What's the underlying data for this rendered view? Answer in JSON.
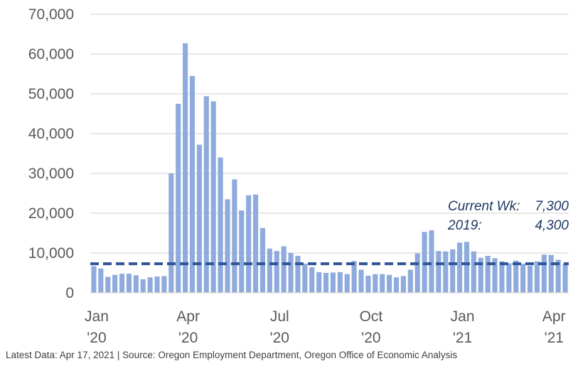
{
  "chart_data": {
    "type": "bar",
    "ylim": [
      0,
      70000
    ],
    "yticks": [
      "0",
      "10,000",
      "20,000",
      "30,000",
      "40,000",
      "50,000",
      "60,000",
      "70,000"
    ],
    "ytick_values": [
      0,
      10000,
      20000,
      30000,
      40000,
      50000,
      60000,
      70000
    ],
    "xtick_labels": [
      {
        "month": "Jan",
        "year": "'20",
        "week_index": 0
      },
      {
        "month": "Apr",
        "year": "'20",
        "week_index": 13
      },
      {
        "month": "Jul",
        "year": "'20",
        "week_index": 26
      },
      {
        "month": "Oct",
        "year": "'20",
        "week_index": 39
      },
      {
        "month": "Jan",
        "year": "'21",
        "week_index": 52
      },
      {
        "month": "Apr",
        "year": "'21",
        "week_index": 65
      }
    ],
    "grid": true,
    "bar_color": "#8faadc",
    "line_color": "#2f5597",
    "values": [
      6700,
      6100,
      4000,
      4500,
      4800,
      4800,
      4400,
      3400,
      3900,
      4100,
      4200,
      30000,
      47500,
      62700,
      54500,
      37200,
      49400,
      48100,
      34000,
      23500,
      28500,
      20700,
      24500,
      24700,
      16300,
      11100,
      10500,
      11700,
      10000,
      9300,
      7300,
      6400,
      5200,
      5000,
      5100,
      5200,
      4700,
      8000,
      5800,
      4300,
      4700,
      4700,
      4500,
      3900,
      4200,
      5800,
      9900,
      15300,
      15700,
      10500,
      10400,
      10900,
      12600,
      12800,
      10400,
      8800,
      9300,
      8700,
      7900,
      7400,
      8100,
      7300,
      6800,
      7900,
      9600,
      9500,
      8300,
      7300
    ],
    "reference_line": 7300,
    "annotations": [
      {
        "label": "Current Wk:",
        "value": "7,300"
      },
      {
        "label": "2019:",
        "value": "4,300"
      }
    ]
  },
  "footer": "Latest Data: Apr 17, 2021  |  Source: Oregon Employment Department, Oregon Office of Economic Analysis"
}
